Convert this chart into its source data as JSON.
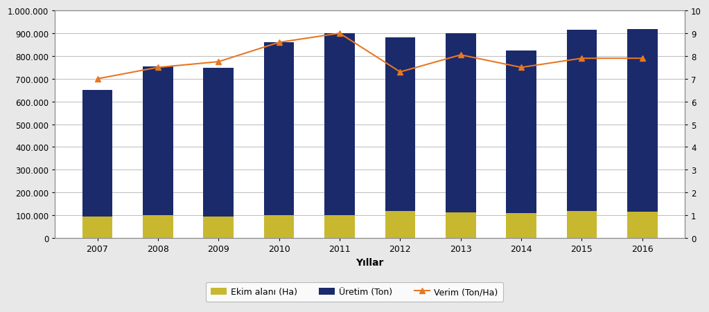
{
  "years": [
    2007,
    2008,
    2009,
    2010,
    2011,
    2012,
    2013,
    2014,
    2015,
    2016
  ],
  "ekim_alani": [
    93000,
    101000,
    94000,
    101000,
    101000,
    120000,
    112000,
    109000,
    119000,
    116000
  ],
  "uretim": [
    650000,
    755000,
    748000,
    860000,
    900000,
    882000,
    900000,
    825000,
    916000,
    918000
  ],
  "verim": [
    7.0,
    7.5,
    7.75,
    8.6,
    9.0,
    7.3,
    8.05,
    7.5,
    7.9,
    7.9
  ],
  "bar_color_ekim": "#C8B830",
  "bar_color_uretim": "#1B2A6B",
  "line_color_verim": "#E87722",
  "xlabel": "Yıllar",
  "ylim_left": [
    0,
    1000000
  ],
  "ylim_right": [
    0,
    10
  ],
  "yticks_left": [
    0,
    100000,
    200000,
    300000,
    400000,
    500000,
    600000,
    700000,
    800000,
    900000,
    1000000
  ],
  "yticks_right": [
    0,
    1,
    2,
    3,
    4,
    5,
    6,
    7,
    8,
    9,
    10
  ],
  "legend_labels": [
    "Ekim alanı (Ha)",
    "Üretim (Ton)",
    "Verim (Ton/Ha)"
  ],
  "background_color": "#ffffff",
  "outer_background": "#E8E8E8",
  "grid_color": "#bbbbbb",
  "bar_width": 0.5
}
